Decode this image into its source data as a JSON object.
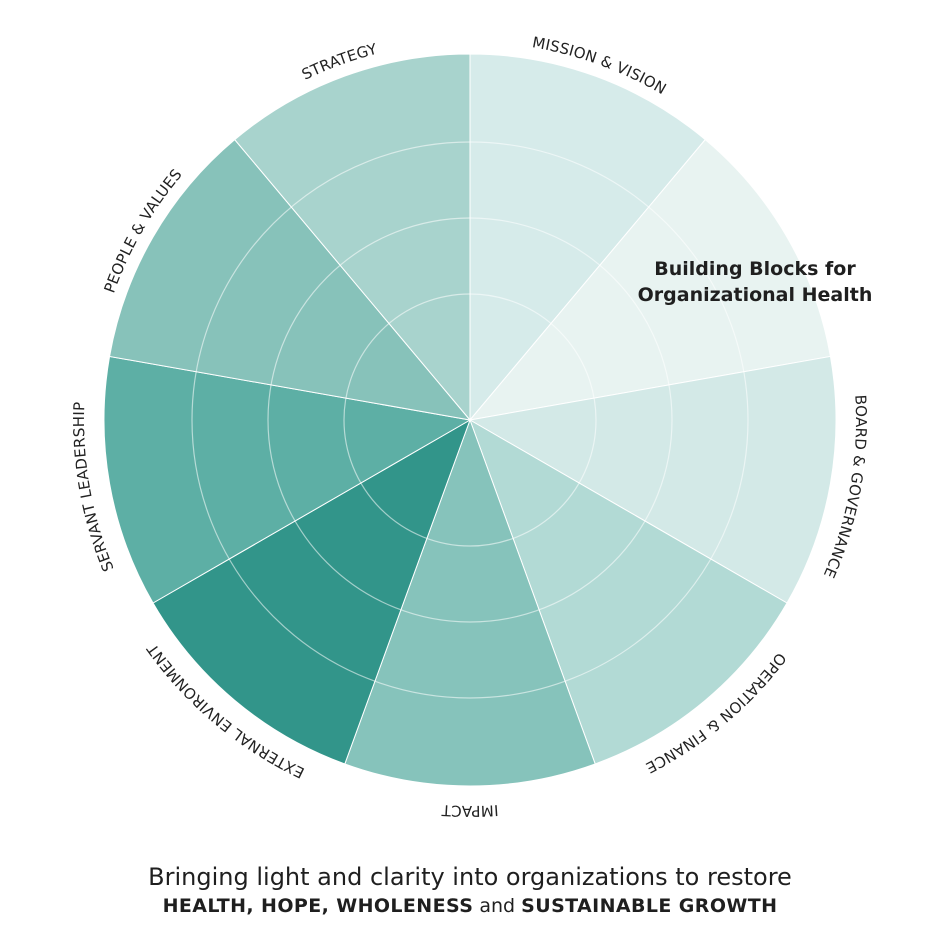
{
  "diagram": {
    "segments": [
      {
        "label": "MISSION & VISION",
        "color": "#d6ebea"
      },
      {
        "label": "",
        "color": "#e8f3f1"
      },
      {
        "label": "BOARD & GOVERNANCE",
        "color": "#d3e9e7"
      },
      {
        "label": "OPERATION & FINANCE",
        "color": "#b2dad5"
      },
      {
        "label": "IMPACT",
        "color": "#86c3bb"
      },
      {
        "label": "EXTERNAL ENVIRONMENT",
        "color": "#32958a"
      },
      {
        "label": "SERVANT LEADERSHIP",
        "color": "#5dafa5"
      },
      {
        "label": "PEOPLE & VALUES",
        "color": "#87c2ba"
      },
      {
        "label": "STRATEGY",
        "color": "#a8d3cd"
      }
    ],
    "ring_line_color": "#ffffff"
  },
  "center_title": {
    "line1": "Building Blocks for",
    "line2": "Organizational Health"
  },
  "tagline": {
    "line1": "Bringing light and clarity into organizations to restore",
    "bold1": "HEALTH, HOPE, WHOLENESS",
    "connector": "and",
    "bold2": "SUSTAINABLE GROWTH"
  }
}
